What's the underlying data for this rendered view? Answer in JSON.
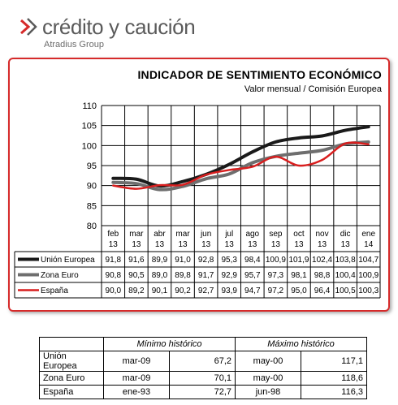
{
  "logo": {
    "brand": "crédito y caución",
    "sub": "Atradius Group"
  },
  "chart_data": {
    "type": "line",
    "title": "INDICADOR DE SENTIMIENTO ECONÓMICO",
    "subtitle": "Valor mensual / Comisión Europea",
    "categories": [
      [
        "feb",
        "13"
      ],
      [
        "mar",
        "13"
      ],
      [
        "abr",
        "13"
      ],
      [
        "mar",
        "13"
      ],
      [
        "jun",
        "13"
      ],
      [
        "jul",
        "13"
      ],
      [
        "ago",
        "13"
      ],
      [
        "sep",
        "13"
      ],
      [
        "oct",
        "13"
      ],
      [
        "nov",
        "13"
      ],
      [
        "dic",
        "13"
      ],
      [
        "ene",
        "14"
      ]
    ],
    "ylim": [
      80,
      110
    ],
    "yticks": [
      80,
      85,
      90,
      95,
      100,
      105,
      110
    ],
    "grid": true,
    "series": [
      {
        "name": "Unión Europea",
        "color": "#1a1a1a",
        "values": [
          91.8,
          91.6,
          89.9,
          91.0,
          92.8,
          95.3,
          98.4,
          100.9,
          101.9,
          102.4,
          103.8,
          104.7
        ],
        "labels": [
          "91,8",
          "91,6",
          "89,9",
          "91,0",
          "92,8",
          "95,3",
          "98,4",
          "100,9",
          "101,9",
          "102,4",
          "103,8",
          "104,7"
        ]
      },
      {
        "name": "Zona Euro",
        "color": "#6e6e6e",
        "values": [
          90.8,
          90.5,
          89.0,
          89.8,
          91.7,
          92.9,
          95.7,
          97.3,
          98.1,
          98.8,
          100.4,
          100.9
        ],
        "labels": [
          "90,8",
          "90,5",
          "89,0",
          "89,8",
          "91,7",
          "92,9",
          "95,7",
          "97,3",
          "98,1",
          "98,8",
          "100,4",
          "100,9"
        ]
      },
      {
        "name": "España",
        "color": "#d81e1e",
        "values": [
          90.0,
          89.2,
          90.1,
          90.2,
          92.7,
          93.9,
          94.7,
          97.2,
          95.0,
          96.4,
          100.5,
          100.3
        ],
        "labels": [
          "90,0",
          "89,2",
          "90,1",
          "90,2",
          "92,7",
          "93,9",
          "94,7",
          "97,2",
          "95,0",
          "96,4",
          "100,5",
          "100,3"
        ]
      }
    ]
  },
  "history_table": {
    "headers": [
      "Mínimo histórico",
      "Máximo histórico"
    ],
    "rows": [
      {
        "name": "Unión Europea",
        "min_date": "mar-09",
        "min_val": "67,2",
        "max_date": "may-00",
        "max_val": "117,1"
      },
      {
        "name": "Zona Euro",
        "min_date": "mar-09",
        "min_val": "70,1",
        "max_date": "may-00",
        "max_val": "118,6"
      },
      {
        "name": "España",
        "min_date": "ene-93",
        "min_val": "72,7",
        "max_date": "jun-98",
        "max_val": "116,3"
      }
    ]
  }
}
